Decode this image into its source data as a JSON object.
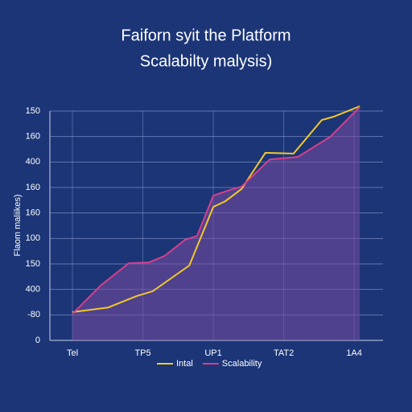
{
  "chart_data": {
    "type": "line",
    "title": "Faiforn syit the Platform",
    "subtitle": "Scalabilty malysis)",
    "y_label": "Flaom maliikes)",
    "xlim": [
      -0.32,
      4.41
    ],
    "xticks": [
      {
        "value": 0,
        "label": "Tel"
      },
      {
        "value": 1,
        "label": "TP5"
      },
      {
        "value": 2,
        "label": "UP1"
      },
      {
        "value": 3,
        "label": "TAT2"
      },
      {
        "value": 4,
        "label": "1A4"
      }
    ],
    "ylim": [
      0,
      9
    ],
    "yticks": [
      0,
      {
        "value": 1,
        "label": "-80"
      },
      {
        "value": 2,
        "label": "400"
      },
      {
        "value": 3,
        "label": "150"
      },
      {
        "value": 4,
        "label": "100"
      },
      {
        "value": 5,
        "label": "160"
      },
      {
        "value": 6,
        "label": "160"
      },
      {
        "value": 7,
        "label": "400"
      },
      {
        "value": 8,
        "label": "160"
      },
      {
        "value": 9,
        "label": "150"
      }
    ],
    "grid": true,
    "series": [
      {
        "name": "Intal",
        "color": "#f2c927",
        "x": [
          0,
          0.51,
          0.91,
          1.14,
          1.66,
          2.0,
          2.17,
          2.4,
          2.74,
          3.14,
          3.54,
          3.71,
          4.08
        ],
        "values": [
          1.11,
          1.29,
          1.74,
          1.93,
          2.94,
          5.24,
          5.46,
          5.94,
          7.36,
          7.33,
          8.65,
          8.78,
          9.19
        ]
      },
      {
        "name": "Scalability",
        "color": "#d63f8c",
        "x": [
          0,
          0.4,
          0.8,
          1.09,
          1.31,
          1.6,
          1.77,
          2.0,
          2.23,
          2.4,
          2.8,
          3.2,
          3.66,
          4.08
        ],
        "values": [
          1.04,
          2.15,
          3.03,
          3.06,
          3.32,
          3.95,
          4.1,
          5.68,
          5.9,
          6.03,
          7.1,
          7.2,
          7.99,
          9.16
        ]
      }
    ]
  }
}
